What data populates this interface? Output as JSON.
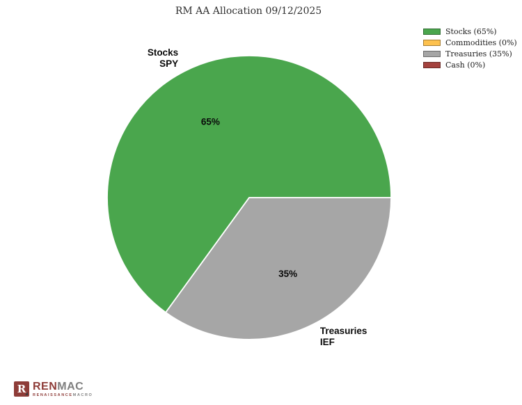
{
  "title": "RM AA Allocation 09/12/2025",
  "chart_data": {
    "type": "pie",
    "title": "RM AA Allocation 09/12/2025",
    "start_angle_deg": 0,
    "direction": "counterclockwise",
    "legend_position": "upper right",
    "grid": false,
    "slices": [
      {
        "name": "Stocks",
        "ticker": "SPY",
        "value": 65,
        "pct_label": "65%",
        "label_lines": [
          "Stocks",
          "SPY"
        ],
        "legend_label": "Stocks (65%)",
        "color": "#4aa64d"
      },
      {
        "name": "Commodities",
        "ticker": "",
        "value": 0,
        "pct_label": "0%",
        "label_lines": [],
        "legend_label": "Commodities (0%)",
        "color": "#fdc14e"
      },
      {
        "name": "Treasuries",
        "ticker": "IEF",
        "value": 35,
        "pct_label": "35%",
        "label_lines": [
          "Treasuries",
          "IEF"
        ],
        "legend_label": "Treasuries (35%)",
        "color": "#a6a6a6"
      },
      {
        "name": "Cash",
        "ticker": "",
        "value": 0,
        "pct_label": "0%",
        "label_lines": [],
        "legend_label": "Cash (0%)",
        "color": "#a4423e"
      }
    ],
    "colors": {
      "slice_edge": "#ffffff",
      "label_text": "#0a0a0a",
      "title_text": "#2f2f2f"
    }
  },
  "logo": {
    "monogram": "R",
    "brand_primary": "REN",
    "brand_secondary": "MAC",
    "tagline_primary": "RENAISSANCE",
    "tagline_secondary": "MACRO",
    "primary_color": "#8e3c38",
    "secondary_color": "#7f7f7f"
  }
}
